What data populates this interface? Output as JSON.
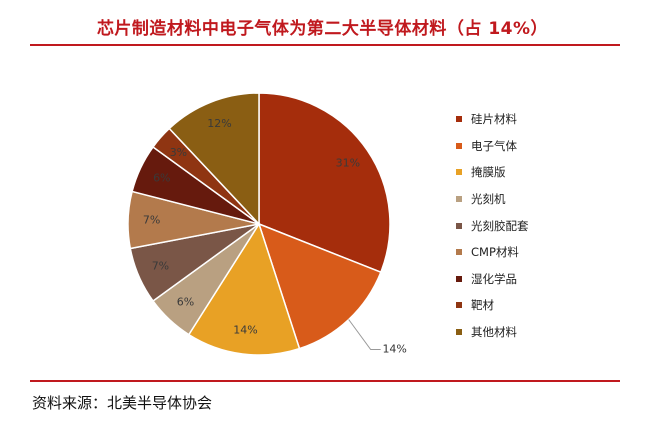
{
  "title": "芯片制造材料中电子气体为第二大半导体材料（占 14%）",
  "source": "资料来源：北美半导体协会",
  "chart_data": {
    "type": "pie",
    "categories": [
      "硅片材料",
      "电子气体",
      "掩膜版",
      "光刻机",
      "光刻胶配套",
      "CMP材料",
      "湿化学品",
      "靶材",
      "其他材料"
    ],
    "values": [
      31,
      14,
      14,
      6,
      7,
      7,
      6,
      3,
      12
    ],
    "labels": [
      "31%",
      "14%",
      "14%",
      "6%",
      "7%",
      "7%",
      "6%",
      "3%",
      "12%"
    ],
    "colors": [
      "#a52d0c",
      "#d85b1a",
      "#e8a125",
      "#b9a081",
      "#7a5647",
      "#b37a4c",
      "#661a0d",
      "#8f3512",
      "#8a5e13"
    ],
    "legend_position": "right"
  }
}
